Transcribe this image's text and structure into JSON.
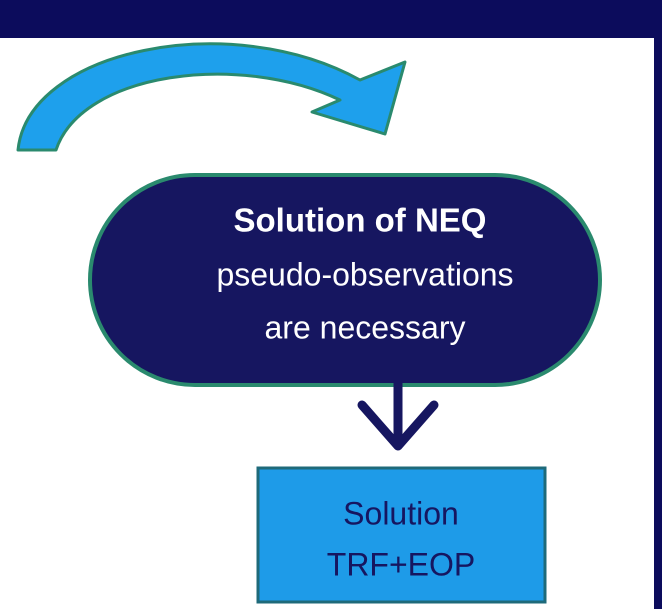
{
  "pill": {
    "title": "Solution of NEQ",
    "lines": [
      "pseudo-observations",
      "are necessary"
    ]
  },
  "box": {
    "lines": [
      "Solution",
      "TRF+EOP"
    ]
  }
}
